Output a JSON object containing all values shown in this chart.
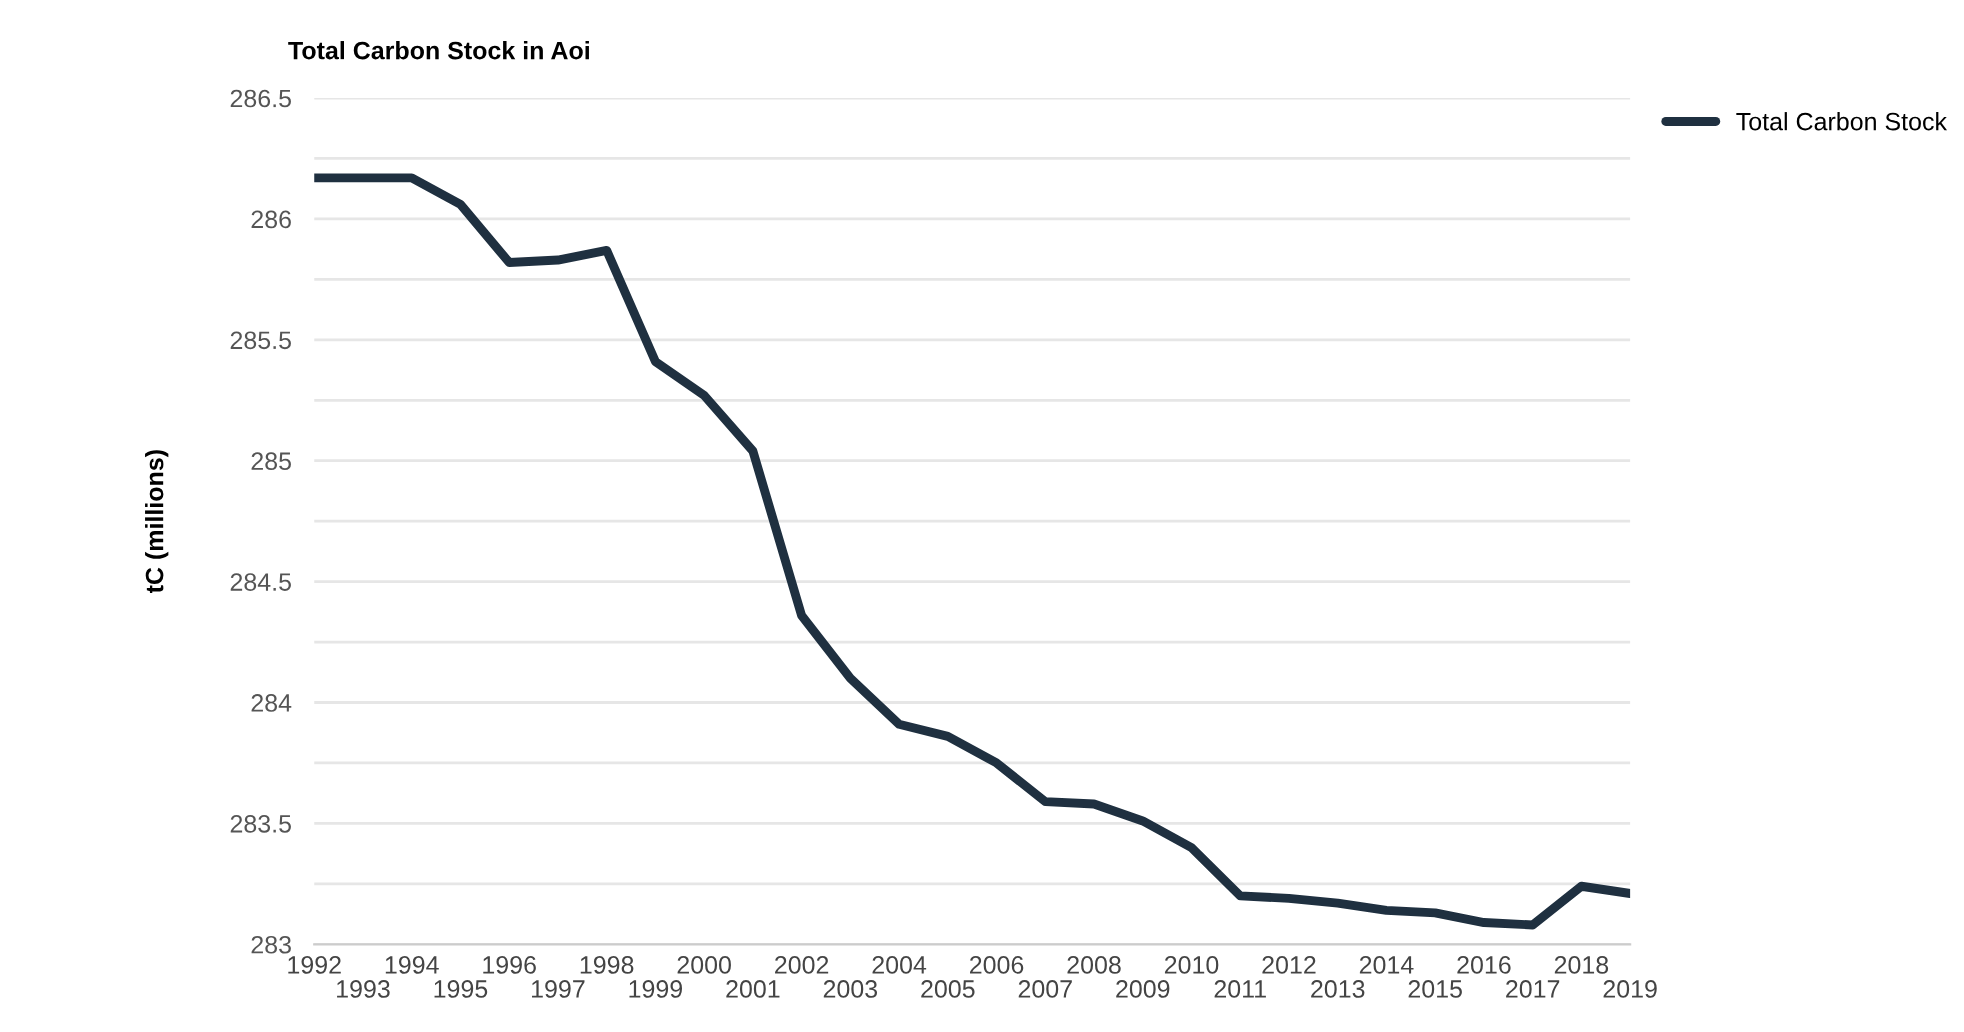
{
  "chart_data": {
    "type": "line",
    "title": "Total Carbon Stock in Aoi",
    "ylabel": "tC (millions)",
    "x": [
      1992,
      1993,
      1994,
      1995,
      1996,
      1997,
      1998,
      1999,
      2000,
      2001,
      2002,
      2003,
      2004,
      2005,
      2006,
      2007,
      2008,
      2009,
      2010,
      2011,
      2012,
      2013,
      2014,
      2015,
      2016,
      2017,
      2018,
      2019
    ],
    "series": [
      {
        "name": "Total Carbon Stock",
        "color": "#1f3040",
        "values": [
          286.17,
          286.17,
          286.17,
          286.06,
          285.82,
          285.83,
          285.87,
          285.41,
          285.27,
          285.04,
          284.36,
          284.1,
          283.91,
          283.86,
          283.75,
          283.59,
          283.58,
          283.51,
          283.4,
          283.2,
          283.19,
          283.17,
          283.14,
          283.13,
          283.09,
          283.08,
          283.24,
          283.21
        ]
      }
    ],
    "xlim": [
      1992,
      2019
    ],
    "xticks": [
      1992,
      1994,
      1996,
      1998,
      2000,
      2002,
      2004,
      2006,
      2008,
      2010,
      2012,
      2014,
      2016,
      2018
    ],
    "x2lim": [
      1992,
      2019
    ],
    "x2ticks": [
      1993,
      1995,
      1997,
      1999,
      2001,
      2003,
      2005,
      2007,
      2009,
      2011,
      2013,
      2015,
      2017,
      2019
    ],
    "ylim": [
      283,
      286.5
    ],
    "yticks": [
      283,
      {
        "value": 283.25,
        "label": null
      },
      283.5,
      {
        "value": 283.75,
        "label": null
      },
      284,
      {
        "value": 284.25,
        "label": null
      },
      284.5,
      {
        "value": 284.75,
        "label": null
      },
      285,
      {
        "value": 285.25,
        "label": null
      },
      285.5,
      {
        "value": 285.75,
        "label": null
      },
      286,
      {
        "value": 286.25,
        "label": null
      },
      286.5
    ],
    "grid": "y",
    "legend": "top right",
    "marker": "none",
    "line_style": "solid"
  }
}
